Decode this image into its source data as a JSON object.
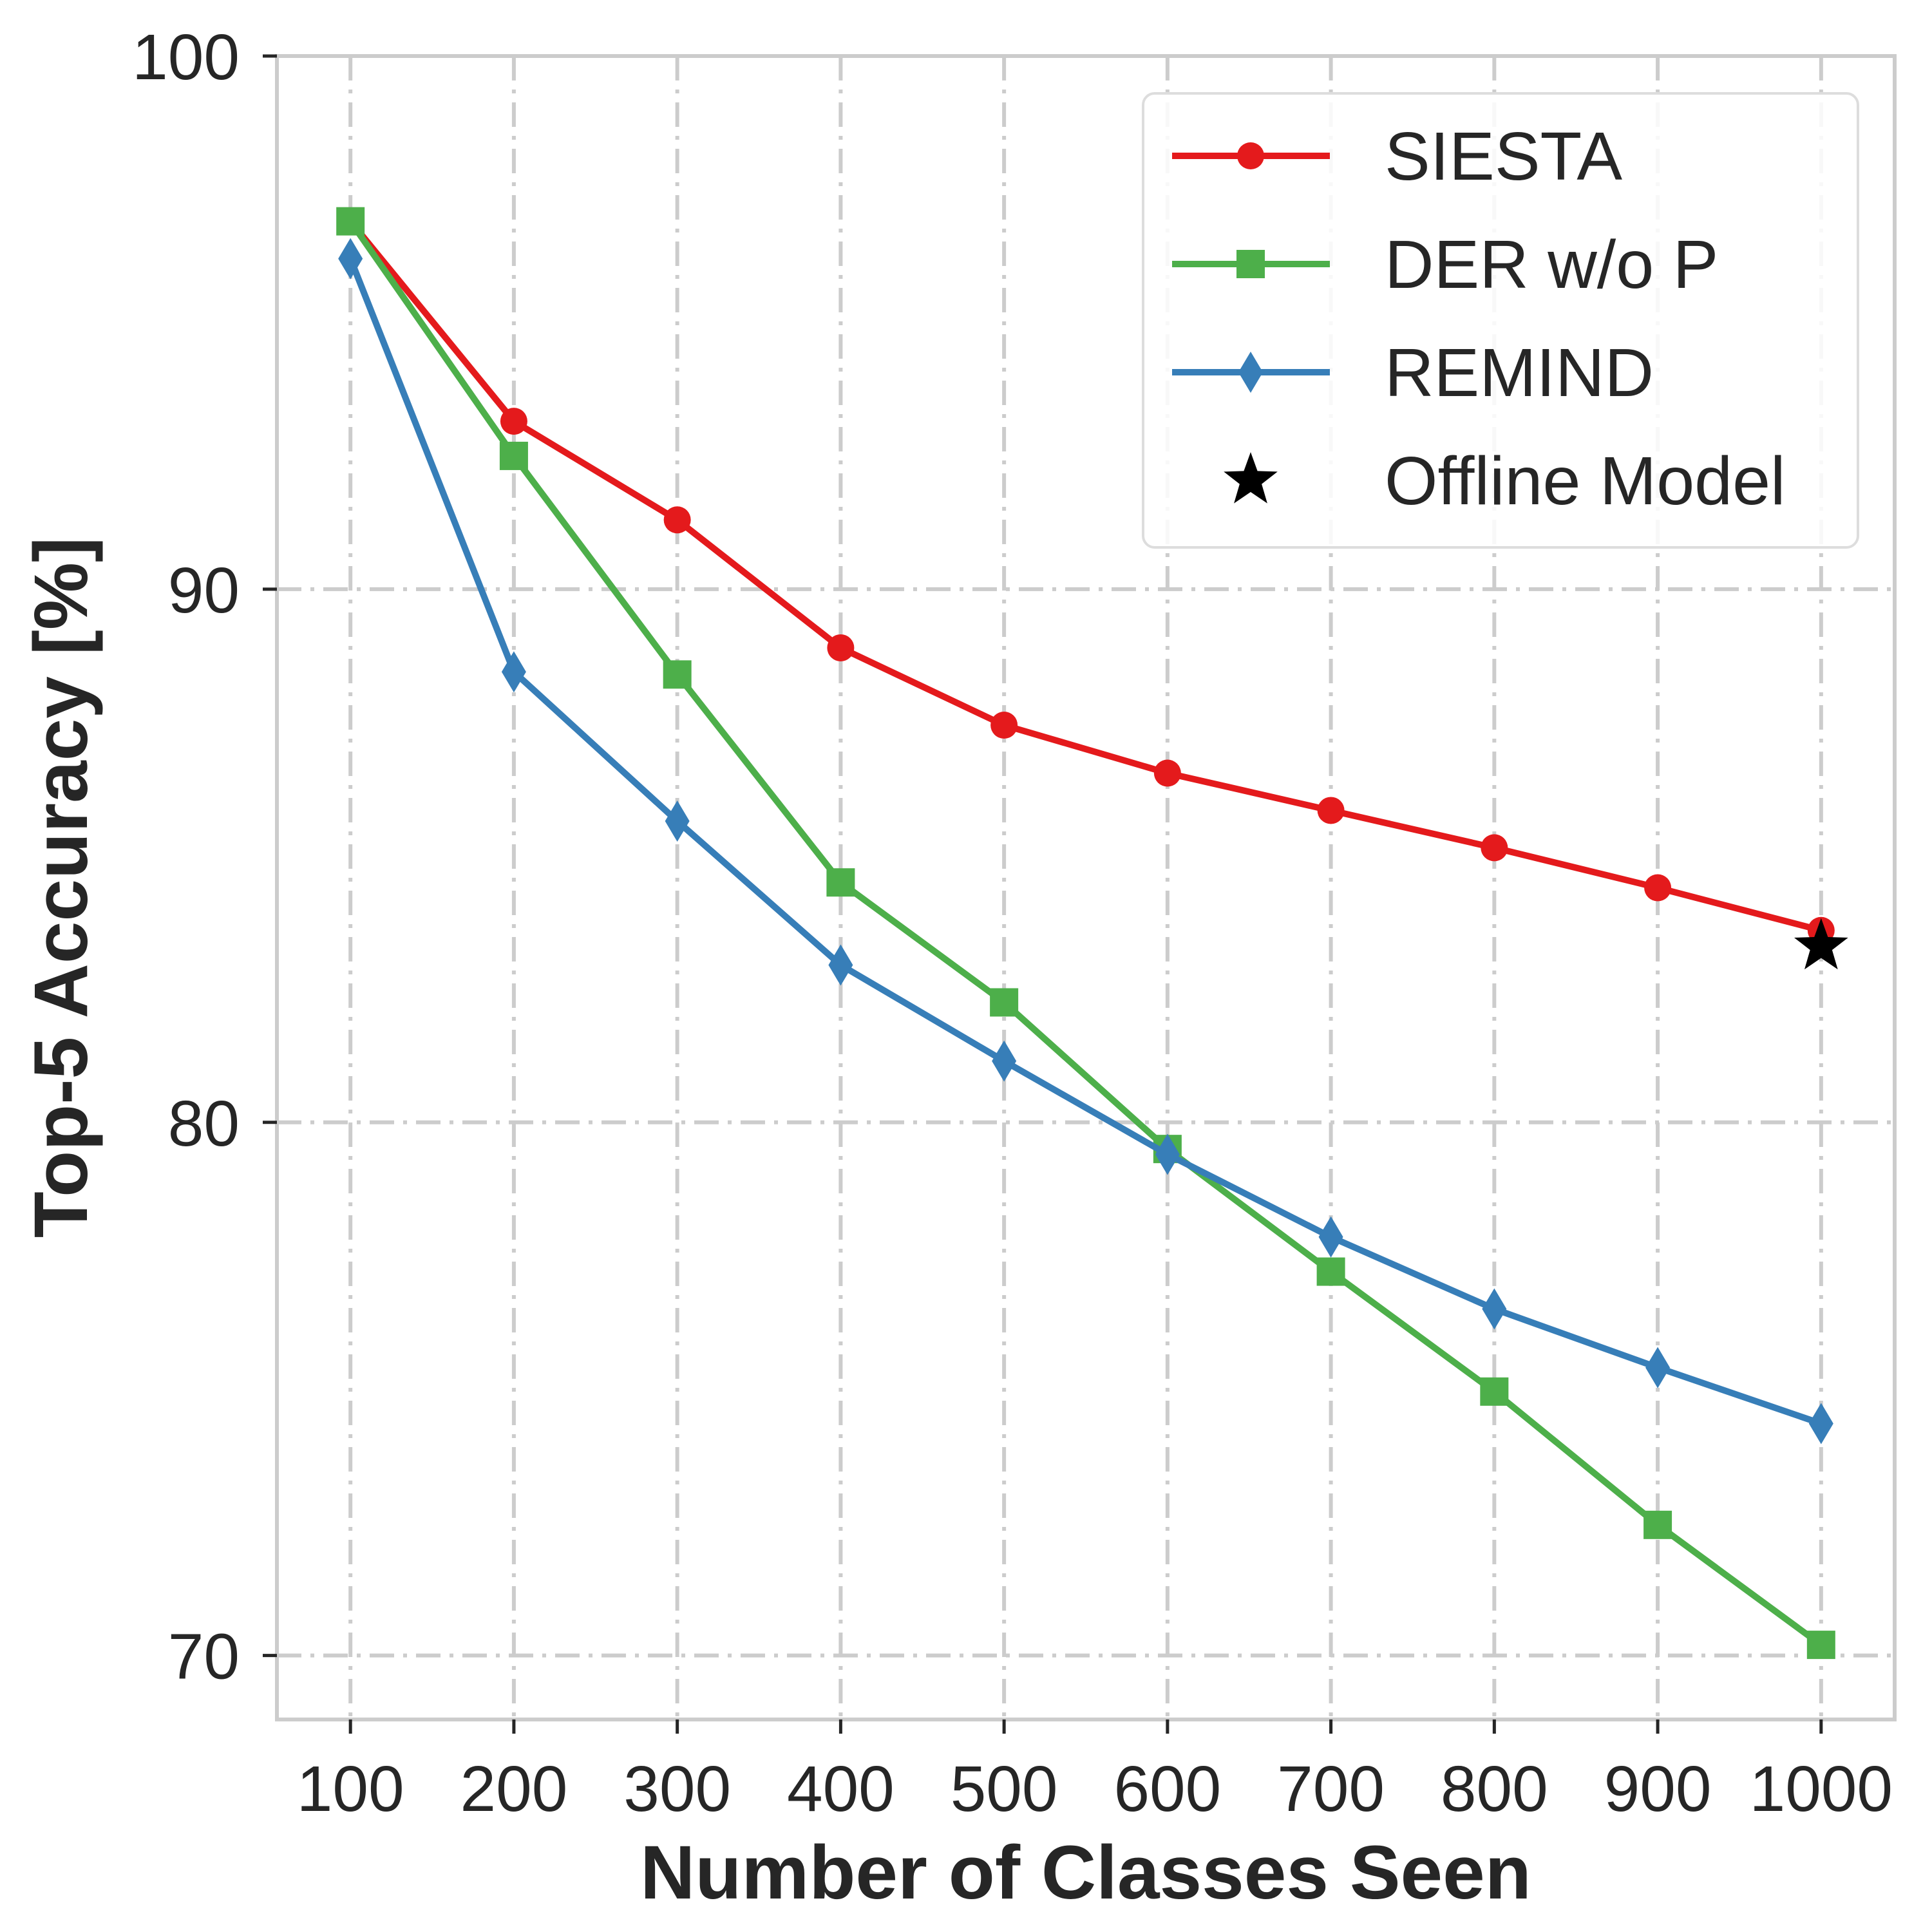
{
  "chart_data": {
    "type": "line",
    "xlabel": "Number of Classes Seen",
    "ylabel": "Top-5 Accuracy [%]",
    "x": [
      100,
      200,
      300,
      400,
      500,
      600,
      700,
      800,
      900,
      1000
    ],
    "xlim": [
      55,
      1045
    ],
    "ylim": [
      68.8,
      100
    ],
    "xticks": [
      100,
      200,
      300,
      400,
      500,
      600,
      700,
      800,
      900,
      1000
    ],
    "yticks": [
      70,
      80,
      90,
      100
    ],
    "grid": true,
    "legend_position": "top-right",
    "series": [
      {
        "name": "SIESTA",
        "color": "#e41a1c",
        "marker": "circle",
        "values": [
          96.9,
          93.15,
          91.3,
          88.9,
          87.45,
          86.55,
          85.85,
          85.15,
          84.4,
          83.6
        ]
      },
      {
        "name": "DER w/o P",
        "color": "#4daf4a",
        "marker": "square",
        "values": [
          96.9,
          92.5,
          88.4,
          84.5,
          82.25,
          79.5,
          77.2,
          74.95,
          72.45,
          70.2
        ]
      },
      {
        "name": "REMIND",
        "color": "#377eb8",
        "marker": "diamond",
        "values": [
          96.2,
          88.45,
          85.65,
          82.95,
          81.15,
          79.4,
          77.85,
          76.5,
          75.4,
          74.35
        ]
      }
    ],
    "points": [
      {
        "name": "Offline Model",
        "color": "#000000",
        "marker": "star",
        "x": 1000,
        "y": 83.3
      }
    ]
  }
}
